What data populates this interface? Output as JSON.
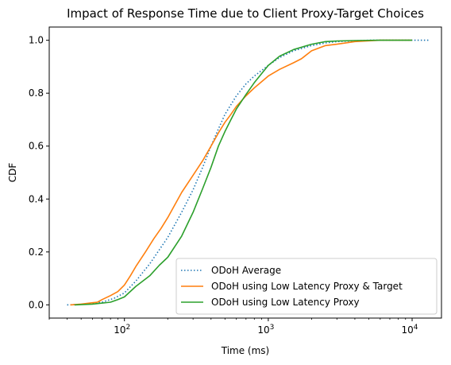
{
  "chart_data": {
    "type": "line",
    "title": "Impact of Response Time due to Client Proxy-Target Choices",
    "xlabel": "Time (ms)",
    "ylabel": "CDF",
    "xscale": "log",
    "xlim": [
      30,
      16000
    ],
    "ylim": [
      -0.05,
      1.05
    ],
    "xticks": [
      {
        "value": 100,
        "base": "10",
        "exp": "2"
      },
      {
        "value": 1000,
        "base": "10",
        "exp": "3"
      },
      {
        "value": 10000,
        "base": "10",
        "exp": "4"
      }
    ],
    "yticks": [
      "0.0",
      "0.2",
      "0.4",
      "0.6",
      "0.8",
      "1.0"
    ],
    "grid": false,
    "legend": "lower-right",
    "series": [
      {
        "name": "ODoH Average",
        "color": "#1f77b4",
        "style": "dotted",
        "x": [
          40,
          55,
          70,
          85,
          100,
          120,
          150,
          200,
          250,
          300,
          350,
          400,
          450,
          500,
          600,
          700,
          800,
          1000,
          1200,
          1500,
          2000,
          2500,
          3000,
          4000,
          5000,
          7000,
          10000,
          13000
        ],
        "y": [
          0.0,
          0.003,
          0.01,
          0.025,
          0.045,
          0.09,
          0.155,
          0.255,
          0.35,
          0.435,
          0.52,
          0.6,
          0.665,
          0.72,
          0.79,
          0.835,
          0.865,
          0.905,
          0.935,
          0.96,
          0.98,
          0.99,
          0.995,
          0.998,
          1.0,
          1.0,
          1.0,
          1.0
        ]
      },
      {
        "name": "ODoH using Low Latency Proxy & Target",
        "color": "#ff7f0e",
        "style": "solid",
        "x": [
          42,
          50,
          60,
          65,
          70,
          80,
          90,
          100,
          110,
          120,
          140,
          160,
          180,
          200,
          250,
          300,
          350,
          400,
          450,
          500,
          550,
          600,
          700,
          800,
          1000,
          1200,
          1500,
          1700,
          2000,
          2500,
          3000,
          4000,
          6000,
          10000
        ],
        "y": [
          0.0,
          0.003,
          0.008,
          0.01,
          0.02,
          0.035,
          0.05,
          0.075,
          0.11,
          0.145,
          0.2,
          0.25,
          0.29,
          0.33,
          0.425,
          0.49,
          0.545,
          0.6,
          0.65,
          0.69,
          0.72,
          0.75,
          0.79,
          0.82,
          0.865,
          0.89,
          0.915,
          0.93,
          0.96,
          0.98,
          0.985,
          0.995,
          1.0,
          1.0
        ]
      },
      {
        "name": "ODoH using Low Latency Proxy",
        "color": "#2ca02c",
        "style": "solid",
        "x": [
          45,
          60,
          80,
          90,
          100,
          120,
          150,
          175,
          200,
          250,
          300,
          350,
          400,
          450,
          500,
          550,
          600,
          700,
          800,
          1000,
          1200,
          1500,
          2000,
          2500,
          3000,
          4000,
          6000,
          10000
        ],
        "y": [
          0.0,
          0.003,
          0.01,
          0.02,
          0.03,
          0.07,
          0.11,
          0.15,
          0.18,
          0.26,
          0.35,
          0.44,
          0.52,
          0.6,
          0.655,
          0.7,
          0.74,
          0.795,
          0.84,
          0.905,
          0.94,
          0.965,
          0.985,
          0.995,
          0.997,
          0.999,
          1.0,
          1.0
        ]
      }
    ]
  }
}
